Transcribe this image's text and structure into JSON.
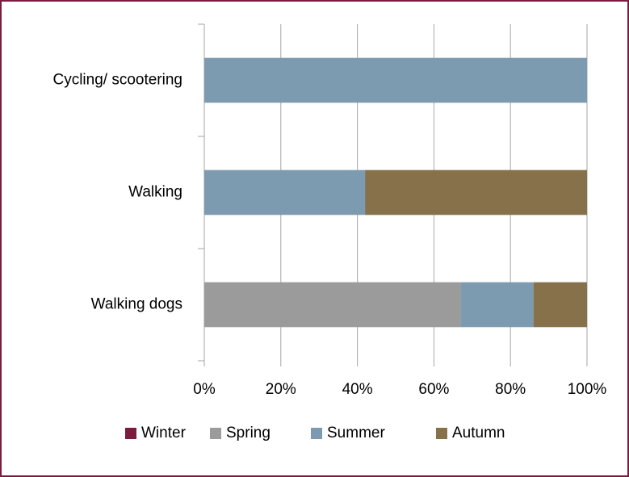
{
  "chart_data": {
    "type": "stacked_bar_horizontal",
    "categories": [
      "Cycling/ scootering",
      "Walking",
      "Walking dogs"
    ],
    "series": [
      {
        "name": "Winter",
        "color": "#7b1b3f",
        "values": [
          0,
          0,
          0
        ]
      },
      {
        "name": "Spring",
        "color": "#9b9b9b",
        "values": [
          0,
          0,
          67
        ]
      },
      {
        "name": "Summer",
        "color": "#7d9bb0",
        "values": [
          100,
          42,
          19
        ]
      },
      {
        "name": "Autumn",
        "color": "#86714a",
        "values": [
          0,
          58,
          14
        ]
      }
    ],
    "xlim": [
      0,
      100
    ],
    "xticks": [
      {
        "value": 0,
        "label": "0%"
      },
      {
        "value": 20,
        "label": "20%"
      },
      {
        "value": 40,
        "label": "40%"
      },
      {
        "value": 60,
        "label": "60%"
      },
      {
        "value": 80,
        "label": "80%"
      },
      {
        "value": 100,
        "label": "100%"
      }
    ],
    "grid": true,
    "legend": "bottom"
  }
}
